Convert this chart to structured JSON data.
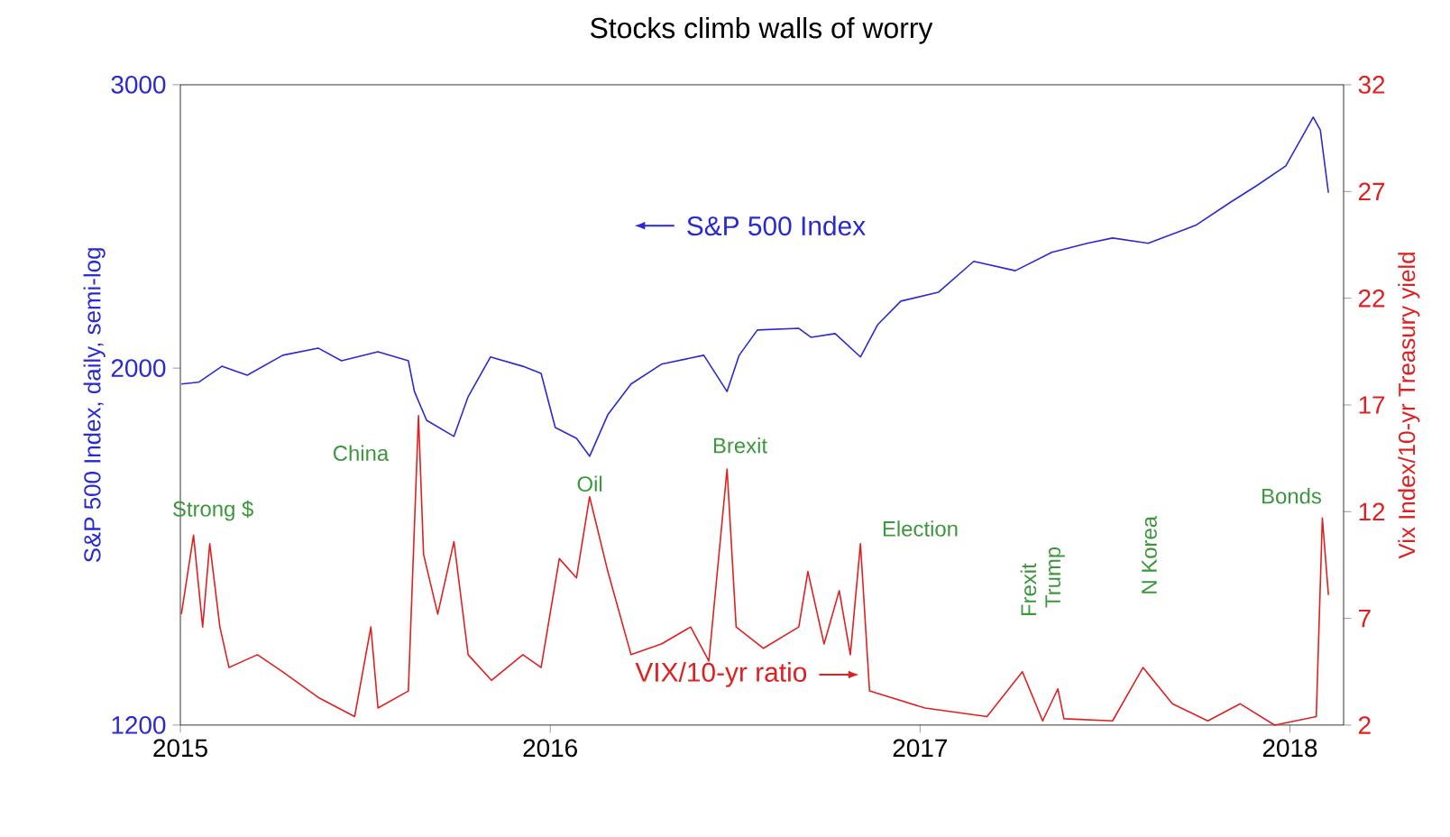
{
  "chart_data": {
    "type": "line",
    "title": "Stocks climb walls of worry",
    "ylabel": "S&P 500 Index, daily, semi-log",
    "y2label": "Vix Index/10-yr Treasury yield",
    "log": "y",
    "xlim": [
      "2015-01-01",
      "2018-02-23"
    ],
    "xticks": [
      "2015",
      "2016",
      "2017",
      "2018"
    ],
    "ylim": [
      1200,
      3000
    ],
    "yticks": [
      1200,
      2000,
      3000
    ],
    "y2lim": [
      2,
      32
    ],
    "y2ticks": [
      2,
      7,
      12,
      17,
      22,
      27,
      32
    ],
    "series": [
      {
        "name": "S&P 500 Index",
        "color": "#2a2ad0",
        "x": [
          "2015-01-02",
          "2015-01-19",
          "2015-02-11",
          "2015-03-08",
          "2015-04-12",
          "2015-05-17",
          "2015-06-09",
          "2015-07-15",
          "2015-08-14",
          "2015-08-20",
          "2015-09-01",
          "2015-09-28",
          "2015-10-12",
          "2015-11-03",
          "2015-12-05",
          "2015-12-23",
          "2016-01-06",
          "2016-01-27",
          "2016-02-09",
          "2016-02-27",
          "2016-03-21",
          "2016-04-20",
          "2016-06-01",
          "2016-06-24",
          "2016-07-06",
          "2016-07-24",
          "2016-09-03",
          "2016-09-15",
          "2016-10-09",
          "2016-11-03",
          "2016-11-20",
          "2016-12-13",
          "2017-01-19",
          "2017-02-23",
          "2017-04-05",
          "2017-05-11",
          "2017-06-15",
          "2017-07-10",
          "2017-08-14",
          "2017-09-30",
          "2017-11-04",
          "2017-11-29",
          "2017-12-28",
          "2018-01-24",
          "2018-01-31",
          "2018-02-08"
        ],
        "values": [
          1955,
          1960,
          2005,
          1980,
          2037,
          2058,
          2021,
          2047,
          2021,
          1934,
          1856,
          1814,
          1920,
          2032,
          2005,
          1985,
          1837,
          1809,
          1763,
          1871,
          1955,
          2011,
          2037,
          1934,
          2037,
          2112,
          2117,
          2090,
          2101,
          2032,
          2128,
          2201,
          2229,
          2330,
          2299,
          2360,
          2391,
          2409,
          2391,
          2453,
          2537,
          2596,
          2671,
          2864,
          2812,
          2570
        ]
      },
      {
        "name": "VIX/10-yr ratio",
        "color": "#e02020",
        "axis": "y2",
        "x": [
          "2015-01-02",
          "2015-01-14",
          "2015-01-23",
          "2015-01-30",
          "2015-02-09",
          "2015-02-18",
          "2015-03-18",
          "2015-04-12",
          "2015-05-17",
          "2015-06-22",
          "2015-07-08",
          "2015-07-15",
          "2015-08-14",
          "2015-08-24",
          "2015-08-29",
          "2015-09-12",
          "2015-09-28",
          "2015-10-12",
          "2015-11-04",
          "2015-12-05",
          "2015-12-23",
          "2016-01-10",
          "2016-01-27",
          "2016-02-09",
          "2016-02-27",
          "2016-03-21",
          "2016-04-20",
          "2016-05-19",
          "2016-06-06",
          "2016-06-24",
          "2016-07-03",
          "2016-07-30",
          "2016-09-03",
          "2016-09-12",
          "2016-09-28",
          "2016-10-13",
          "2016-10-24",
          "2016-11-03",
          "2016-11-12",
          "2017-01-06",
          "2017-03-08",
          "2017-04-12",
          "2017-05-02",
          "2017-05-17",
          "2017-05-23",
          "2017-07-10",
          "2017-08-09",
          "2017-09-07",
          "2017-10-12",
          "2017-11-13",
          "2017-12-17",
          "2018-01-27",
          "2018-02-02",
          "2018-02-08"
        ],
        "values": [
          7.2,
          10.9,
          6.6,
          10.5,
          6.6,
          4.7,
          5.3,
          4.5,
          3.3,
          2.4,
          6.6,
          2.8,
          3.6,
          16.5,
          10.0,
          7.2,
          10.6,
          5.3,
          4.1,
          5.3,
          4.7,
          9.8,
          8.9,
          12.7,
          9.2,
          5.3,
          5.8,
          6.6,
          5.0,
          14.0,
          6.6,
          5.6,
          6.6,
          9.2,
          5.8,
          8.3,
          5.3,
          10.5,
          3.6,
          2.8,
          2.4,
          4.5,
          2.2,
          3.7,
          2.3,
          2.2,
          4.7,
          3.0,
          2.2,
          3.0,
          2.0,
          2.4,
          11.7,
          8.1
        ]
      }
    ],
    "annotations": [
      "Strong $",
      "China",
      "Oil",
      "Brexit",
      "Election",
      "Frexit",
      "Trump",
      "N Korea",
      "Bonds"
    ]
  }
}
